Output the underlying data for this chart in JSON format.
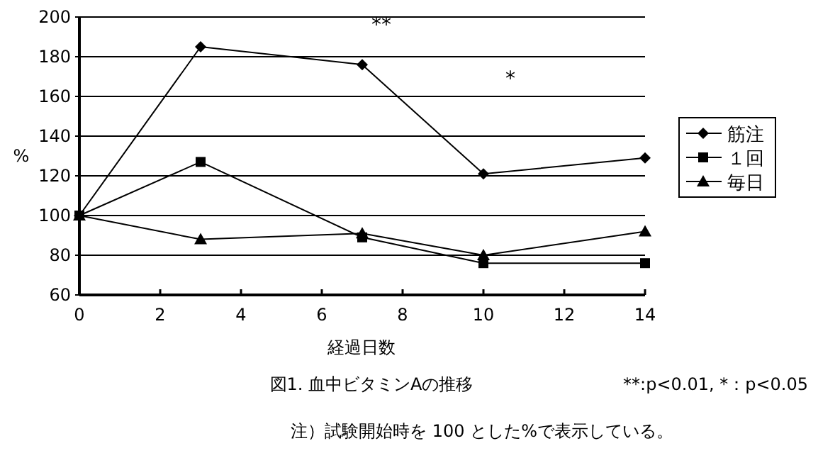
{
  "chart_data": {
    "type": "line",
    "title": "図1. 血中ビタミンAの推移",
    "xlabel": "経過日数",
    "ylabel": "%",
    "x": [
      0,
      3,
      7,
      10,
      14
    ],
    "series": [
      {
        "name": "筋注",
        "color": "#000000",
        "marker": "diamond",
        "values": [
          100,
          185,
          176,
          121,
          129
        ]
      },
      {
        "name": "１回",
        "color": "#000000",
        "marker": "square",
        "values": [
          100,
          127,
          89,
          76,
          76
        ]
      },
      {
        "name": "毎日",
        "color": "#000000",
        "marker": "triangle",
        "values": [
          100,
          88,
          91,
          80,
          92
        ]
      }
    ],
    "annotations": [
      "**",
      "*",
      "**:p<0.01, *：p<0.05",
      "注）試験開始時を 100 とした%で表示している。"
    ],
    "xlim": [
      0,
      14
    ],
    "xticks": [
      0,
      2,
      4,
      6,
      8,
      10,
      12,
      14
    ],
    "ylim": [
      60,
      200
    ],
    "yticks": [
      60,
      80,
      100,
      120,
      140,
      160,
      180,
      200
    ],
    "grid": "y",
    "legend": "right",
    "line_style": "solid"
  }
}
